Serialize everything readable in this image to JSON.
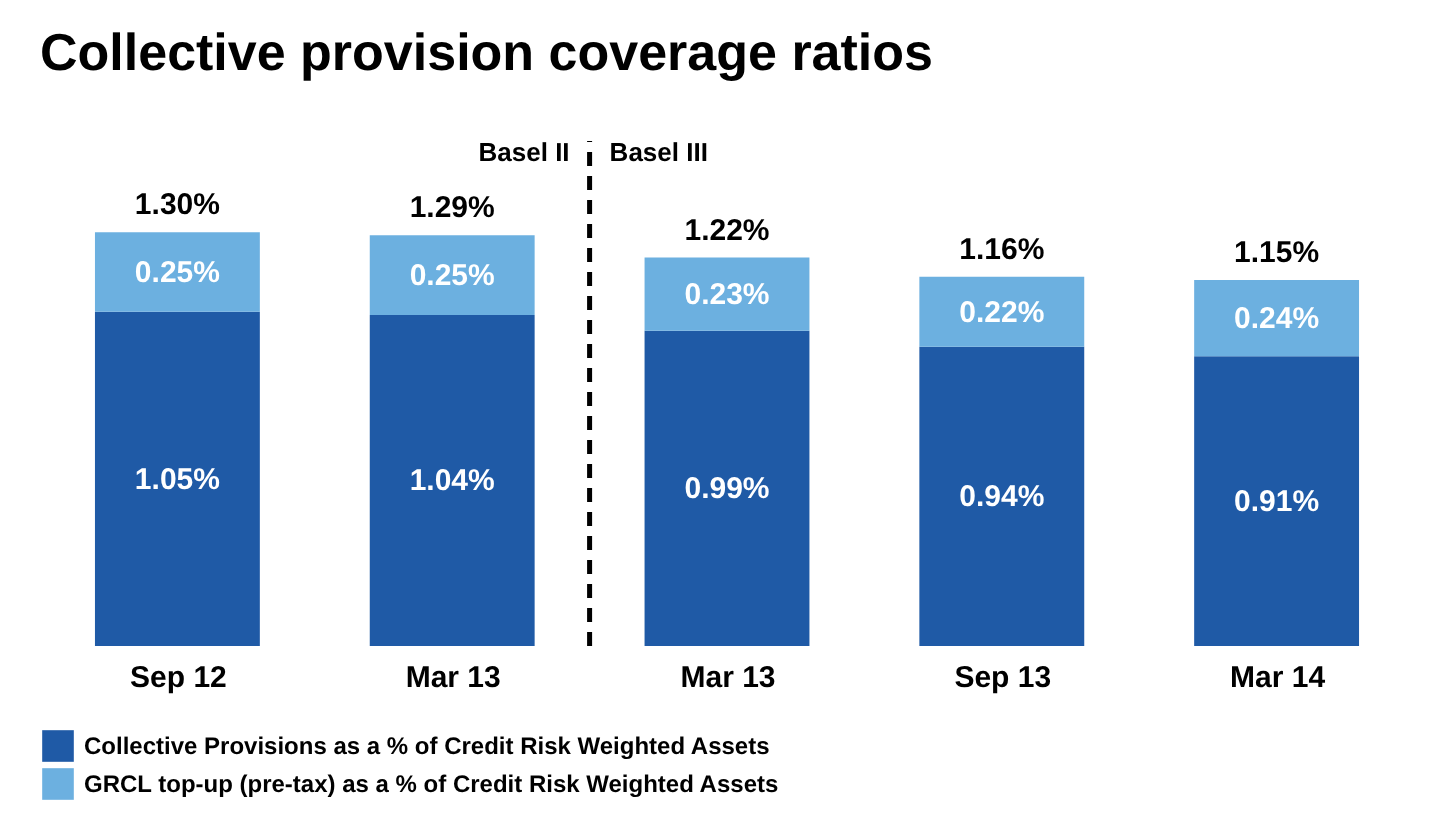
{
  "chart_data": {
    "type": "bar",
    "title": "Collective provision coverage ratios",
    "stacked": true,
    "categories": [
      "Sep 12",
      "Mar 13",
      "Mar 13",
      "Sep 13",
      "Mar 14"
    ],
    "series": [
      {
        "name": "Collective Provisions as a % of Credit Risk Weighted Assets",
        "color": "#1f5aa6",
        "values": [
          1.05,
          1.04,
          0.99,
          0.94,
          0.91
        ],
        "value_labels": [
          "1.05%",
          "1.04%",
          "0.99%",
          "0.94%",
          "0.91%"
        ]
      },
      {
        "name": "GRCL top-up (pre-tax) as a % of Credit Risk Weighted Assets",
        "color": "#6cb0e0",
        "values": [
          0.25,
          0.25,
          0.23,
          0.22,
          0.24
        ],
        "value_labels": [
          "0.25%",
          "0.25%",
          "0.23%",
          "0.22%",
          "0.24%"
        ]
      }
    ],
    "totals": [
      "1.30%",
      "1.29%",
      "1.22%",
      "1.16%",
      "1.15%"
    ],
    "annotations": [
      "Basel II",
      "Basel III"
    ],
    "legend": "bottom",
    "grid": false
  }
}
